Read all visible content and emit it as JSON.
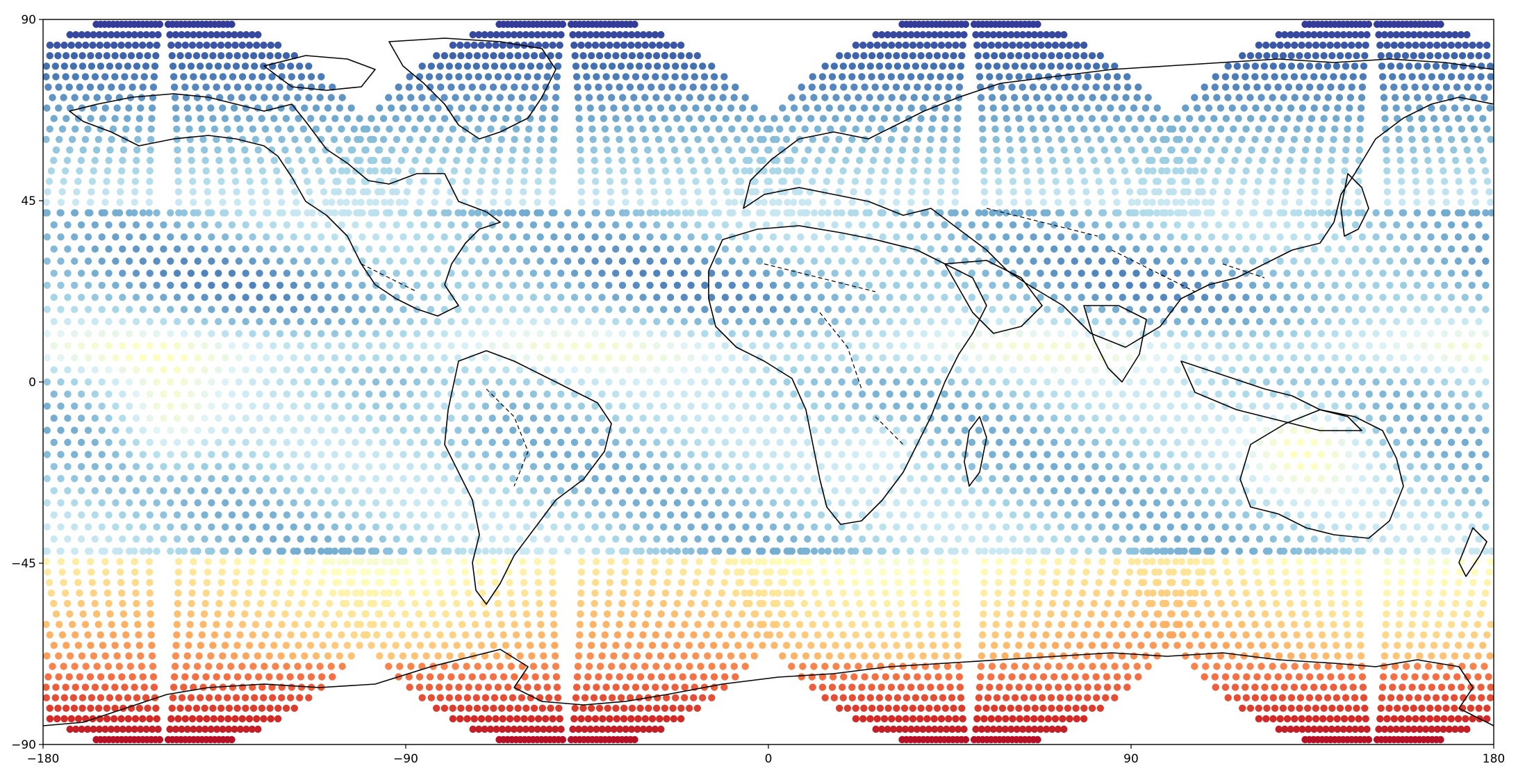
{
  "chart_data": {
    "type": "scatter",
    "title": "",
    "xlabel": "",
    "ylabel": "",
    "xlim": [
      -180,
      180
    ],
    "ylim": [
      -90,
      90
    ],
    "grid": false,
    "colormap": "RdYlBu",
    "colormap_stops": [
      "#a50026",
      "#d73027",
      "#f46d43",
      "#fdae61",
      "#fee090",
      "#ffffbf",
      "#e0f3f8",
      "#abd9e9",
      "#74add1",
      "#4575b4",
      "#313695"
    ],
    "point_color": "#4575b4",
    "coastline_color": "#000000",
    "x_ticks": [
      {
        "value": -180,
        "label": "−180"
      },
      {
        "value": -90,
        "label": "−90"
      },
      {
        "value": 0,
        "label": "0"
      },
      {
        "value": 90,
        "label": "90"
      },
      {
        "value": 180,
        "label": "180"
      }
    ],
    "y_ticks": [
      {
        "value": 90,
        "label": "90"
      },
      {
        "value": 45,
        "label": "45"
      },
      {
        "value": 0,
        "label": "0"
      },
      {
        "value": -45,
        "label": "−45"
      },
      {
        "value": -90,
        "label": "−90"
      }
    ],
    "features": [
      "coastlines",
      "country-borders"
    ],
    "legend": "none"
  }
}
